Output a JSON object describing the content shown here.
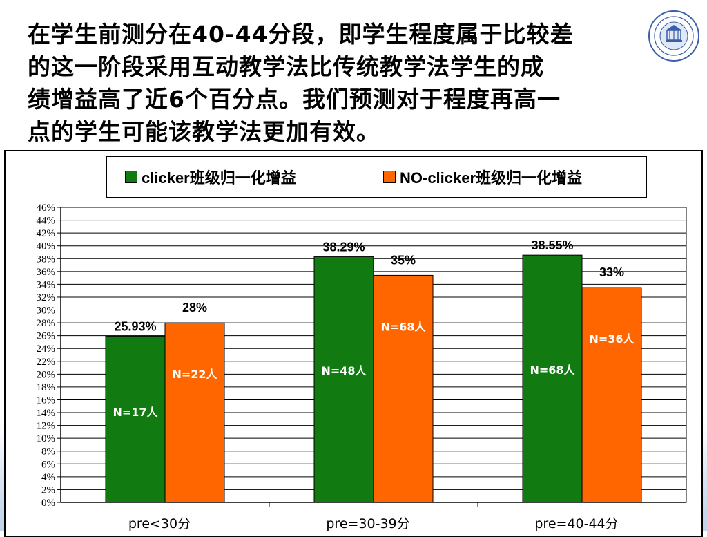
{
  "slide": {
    "title_lines": [
      "在学生前测分在40-44分段，即学生程度属于比较差",
      "的这一阶段采用互动教学法比传统教学法学生的成",
      "绩增益高了近6个百分点。我们预测对于程度再高一",
      "点的学生可能该教学法更加有效。"
    ],
    "logo_icon": "university-seal-icon"
  },
  "chart_data": {
    "type": "bar",
    "categories": [
      "pre<30分",
      "pre=30-39分",
      "pre=40-44分"
    ],
    "series": [
      {
        "name": "clicker班级归一化增益",
        "color": "#117a11",
        "values": [
          25.93,
          38.29,
          38.55
        ],
        "value_labels": [
          "25.93%",
          "38.29%",
          "38.55%"
        ],
        "n_labels": [
          "N=17人",
          "N=48人",
          "N=68人"
        ]
      },
      {
        "name": "NO-clicker班级归一化增益",
        "color": "#ff6600",
        "values": [
          28,
          35.4,
          33.5
        ],
        "value_labels": [
          "28%",
          "35%",
          "33%"
        ],
        "n_labels": [
          "N=22人",
          "N=68人",
          "N=36人"
        ]
      }
    ],
    "ylim": [
      0,
      46
    ],
    "y_tick_step": 2,
    "y_tick_suffix": "%",
    "grid": true,
    "legend_position": "top"
  }
}
